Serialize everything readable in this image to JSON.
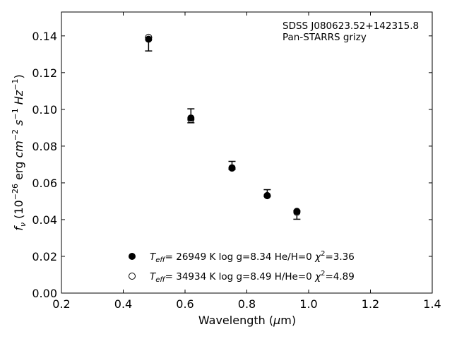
{
  "chart_data": {
    "type": "scatter",
    "xlabel": "Wavelength (μm)",
    "ylabel": "fν (10−26 erg cm−2 s−1 Hz−1)",
    "xlim": [
      0.2,
      1.4
    ],
    "ylim": [
      0.0,
      0.153
    ],
    "xticks": [
      "0.2",
      "0.4",
      "0.6",
      "0.8",
      "1.0",
      "1.2",
      "1.4"
    ],
    "yticks": [
      "0.00",
      "0.02",
      "0.04",
      "0.06",
      "0.08",
      "0.10",
      "0.12",
      "0.14"
    ],
    "annotation": [
      "SDSS J080623.52+142315.8",
      "Pan-STARRS grizy"
    ],
    "observed": {
      "x": [
        0.482,
        0.619,
        0.752,
        0.866,
        0.962
      ],
      "y": [
        0.1355,
        0.0965,
        0.0695,
        0.0545,
        0.0425
      ],
      "yerr": [
        0.0037,
        0.0038,
        0.0022,
        0.0018,
        0.0023
      ]
    },
    "series": [
      {
        "legend": "Teff= 26949 K  log g=8.34  He/H=0  χ2=3.36",
        "marker": "filled-circle",
        "x": [
          0.482,
          0.619,
          0.752,
          0.866,
          0.962
        ],
        "y": [
          0.1382,
          0.0953,
          0.0682,
          0.0531,
          0.0445
        ]
      },
      {
        "legend": "Teff= 34934 K  log g=8.49  H/He=0  χ2=4.89",
        "marker": "open-circle",
        "x": [
          0.482,
          0.619,
          0.752,
          0.866,
          0.962
        ],
        "y": [
          0.1392,
          0.0945,
          0.068,
          0.053,
          0.044
        ]
      }
    ],
    "legend_position": "lower-center",
    "grid": false
  }
}
